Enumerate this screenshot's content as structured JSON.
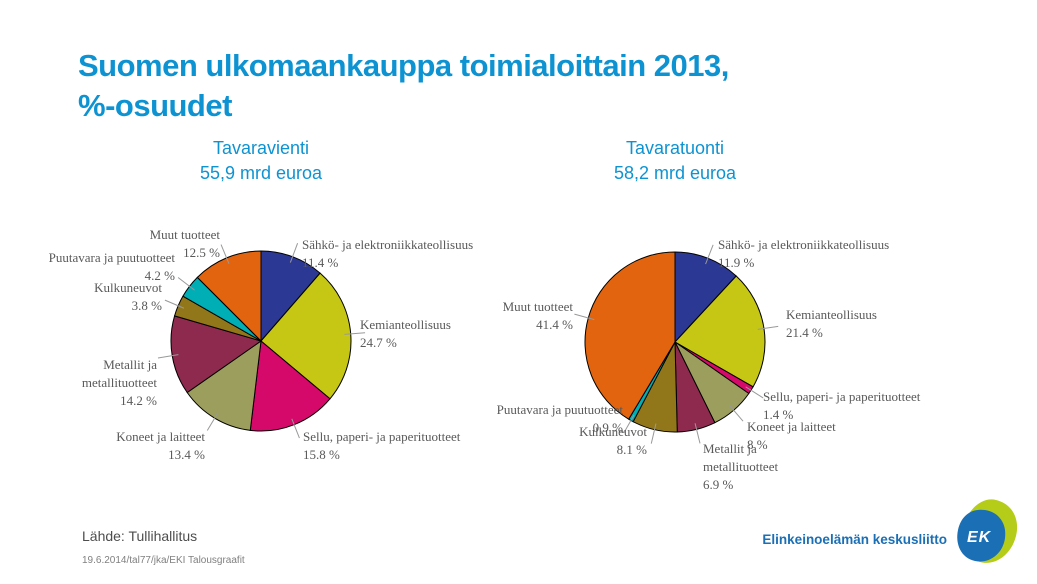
{
  "title": {
    "line1": "Suomen ulkomaankauppa toimialoittain 2013,",
    "line2": "%-osuudet"
  },
  "chart_data": [
    {
      "type": "pie",
      "title": "Tavaravienti",
      "subtitle": "55,9 mrd euroa",
      "unit": "%",
      "start_angle_deg": 0,
      "direction": "clockwise",
      "slices": [
        {
          "label": "Sähkö- ja elektroniikkateollisuus",
          "value": 11.4,
          "pct_label": "11.4 %",
          "label_lines": [
            "Sähkö- ja elektroniikkateollisuus"
          ],
          "color": "#2B3894"
        },
        {
          "label": "Kemianteollisuus",
          "value": 24.7,
          "pct_label": "24.7 %",
          "label_lines": [
            "Kemianteollisuus"
          ],
          "color": "#C5C714"
        },
        {
          "label": "Sellu, paperi- ja paperituotteet",
          "value": 15.8,
          "pct_label": "15.8 %",
          "label_lines": [
            "Sellu, paperi- ja paperituotteet"
          ],
          "color": "#D5096A"
        },
        {
          "label": "Koneet ja laitteet",
          "value": 13.4,
          "pct_label": "13.4 %",
          "label_lines": [
            "Koneet ja laitteet"
          ],
          "color": "#9B9E5C"
        },
        {
          "label": "Metallit ja metallituotteet",
          "value": 14.2,
          "pct_label": "14.2 %",
          "label_lines": [
            "Metallit ja",
            "metallituotteet"
          ],
          "color": "#8E2A4D"
        },
        {
          "label": "Kulkuneuvot",
          "value": 3.8,
          "pct_label": "3.8 %",
          "label_lines": [
            "Kulkuneuvot"
          ],
          "color": "#91761A"
        },
        {
          "label": "Puutavara ja puutuotteet",
          "value": 4.2,
          "pct_label": "4.2 %",
          "label_lines": [
            "Puutavara ja puutuotteet"
          ],
          "color": "#00AEB5"
        },
        {
          "label": "Muut tuotteet",
          "value": 12.5,
          "pct_label": "12.5 %",
          "label_lines": [
            "Muut tuotteet"
          ],
          "color": "#E2640E"
        }
      ]
    },
    {
      "type": "pie",
      "title": "Tavaratuonti",
      "subtitle": "58,2 mrd euroa",
      "unit": "%",
      "start_angle_deg": 0,
      "direction": "clockwise",
      "slices": [
        {
          "label": "Sähkö- ja elektroniikkateollisuus",
          "value": 11.9,
          "pct_label": "11.9 %",
          "label_lines": [
            "Sähkö- ja elektroniikkateollisuus"
          ],
          "color": "#2B3894"
        },
        {
          "label": "Kemianteollisuus",
          "value": 21.4,
          "pct_label": "21.4 %",
          "label_lines": [
            "Kemianteollisuus"
          ],
          "color": "#C5C714"
        },
        {
          "label": "Sellu, paperi- ja paperituotteet",
          "value": 1.4,
          "pct_label": "1.4 %",
          "label_lines": [
            "Sellu, paperi- ja paperituotteet"
          ],
          "color": "#D5096A"
        },
        {
          "label": "Koneet ja laitteet",
          "value": 8,
          "pct_label": "8 %",
          "label_lines": [
            "Koneet ja laitteet"
          ],
          "color": "#9B9E5C"
        },
        {
          "label": "Metallit ja metallituotteet",
          "value": 6.9,
          "pct_label": "6.9 %",
          "label_lines": [
            "Metallit ja",
            "metallituotteet"
          ],
          "color": "#8E2A4D"
        },
        {
          "label": "Kulkuneuvot",
          "value": 8.1,
          "pct_label": "8.1 %",
          "label_lines": [
            "Kulkuneuvot"
          ],
          "color": "#91761A"
        },
        {
          "label": "Puutavara ja puutuotteet",
          "value": 0.9,
          "pct_label": "0.9 %",
          "label_lines": [
            "Puutavara ja puutuotteet"
          ],
          "color": "#00AEB5"
        },
        {
          "label": "Muut tuotteet",
          "value": 41.4,
          "pct_label": "41.4 %",
          "label_lines": [
            "Muut tuotteet"
          ],
          "color": "#E2640E"
        }
      ]
    }
  ],
  "footer": {
    "source": "Lähde: Tullihallitus",
    "note": "19.6.2014/tal77/jka/EKI Talousgraafit"
  },
  "logo": {
    "org": "Elinkeinoelämän keskusliitto",
    "mark_text": "EK"
  },
  "colors": {
    "accent_blue": "#0E93D2",
    "label_gray": "#595959",
    "leader_gray": "#999999",
    "slice_outline": "#000000",
    "logo_blue": "#1B6FB5",
    "logo_lime": "#B5CC18"
  }
}
